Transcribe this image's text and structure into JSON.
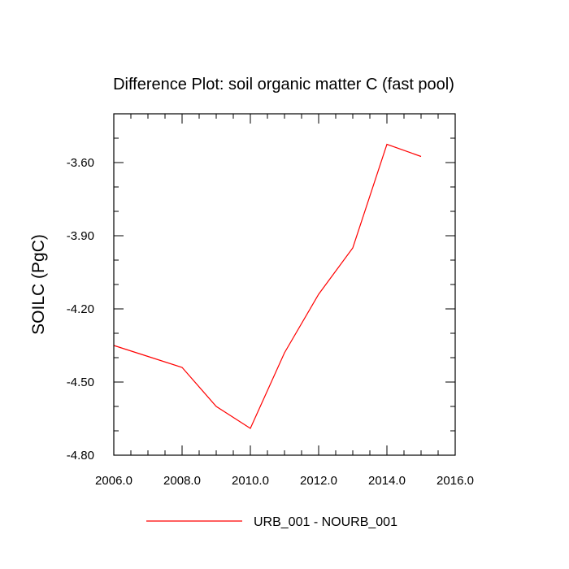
{
  "chart_data": {
    "type": "line",
    "title": "Difference Plot: soil organic matter C (fast pool)",
    "xlabel": "",
    "ylabel": "SOILC  (PgC)",
    "xlim": [
      2006.0,
      2016.0
    ],
    "ylim": [
      -4.8,
      -3.4
    ],
    "x_ticks": [
      "2006.0",
      "2008.0",
      "2010.0",
      "2012.0",
      "2014.0",
      "2016.0"
    ],
    "y_ticks": [
      "-3.60",
      "-3.90",
      "-4.20",
      "-4.50",
      "-4.80"
    ],
    "grid": false,
    "legend_position": "bottom",
    "series": [
      {
        "name": "URB_001 - NOURB_001",
        "color": "#ff0000",
        "x": [
          2006,
          2007,
          2008,
          2009,
          2010,
          2011,
          2012,
          2013,
          2014,
          2015
        ],
        "y": [
          -4.35,
          -4.395,
          -4.44,
          -4.6,
          -4.69,
          -4.38,
          -4.14,
          -3.95,
          -3.525,
          -3.575
        ]
      }
    ]
  }
}
